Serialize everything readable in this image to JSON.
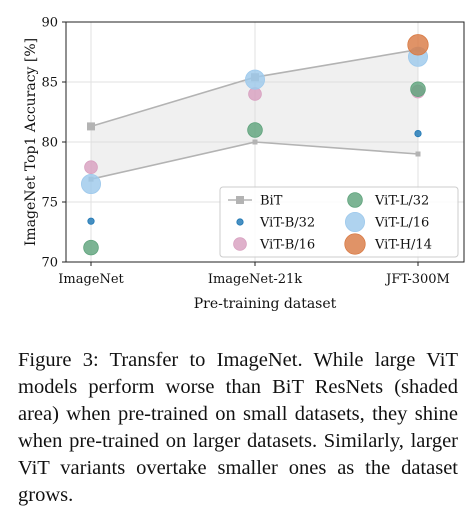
{
  "chart_data": {
    "type": "scatter",
    "xlabel": "Pre-training dataset",
    "ylabel": "ImageNet Top1 Accuracy [%]",
    "categories": [
      "ImageNet",
      "ImageNet-21k",
      "JFT-300M"
    ],
    "ylim": [
      70,
      90
    ],
    "yticks": [
      70,
      75,
      80,
      85,
      90
    ],
    "grid": true,
    "legend_position": "bottom-right",
    "bit_band": {
      "upper": [
        81.3,
        85.4,
        87.7
      ],
      "lower": [
        76.9,
        80.0,
        79.0
      ]
    },
    "series": [
      {
        "name": "BiT",
        "kind": "band-line",
        "color": "#b3b3b3"
      },
      {
        "name": "ViT-B/32",
        "values": [
          73.4,
          null,
          80.7
        ],
        "color": "#1f77b4",
        "size": 1
      },
      {
        "name": "ViT-B/16",
        "values": [
          77.9,
          84.0,
          84.2
        ],
        "color": "#d8a0c0",
        "size": 2
      },
      {
        "name": "ViT-L/32",
        "values": [
          71.2,
          81.0,
          84.4
        ],
        "color": "#5fa37c",
        "size": 2.3
      },
      {
        "name": "ViT-L/16",
        "values": [
          76.5,
          85.2,
          87.1
        ],
        "color": "#9ec9ec",
        "size": 3
      },
      {
        "name": "ViT-H/14",
        "values": [
          null,
          null,
          88.1
        ],
        "color": "#d97b45",
        "size": 3.2
      }
    ]
  },
  "caption": {
    "text": "Figure 3:  Transfer to ImageNet.  While large ViT models perform worse than BiT ResNets (shaded area) when pre-trained on small datasets, they shine when pre-trained on larger datasets.  Similarly, larger ViT variants overtake smaller ones as the dataset grows."
  }
}
